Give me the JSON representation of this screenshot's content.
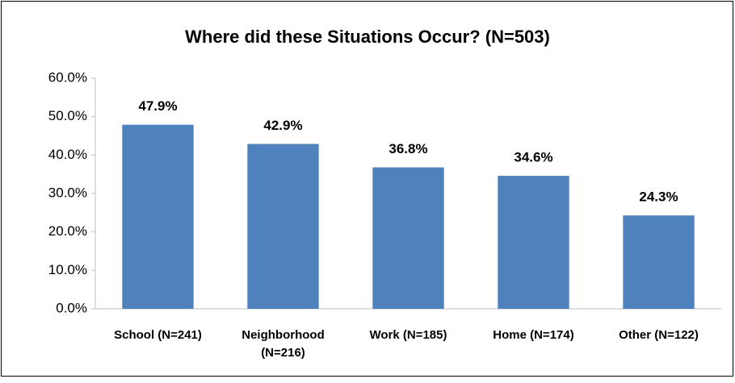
{
  "chart_data": {
    "type": "bar",
    "title": "Where did these Situations Occur? (N=503)",
    "categories": [
      "School (N=241)",
      "Neighborhood (N=216)",
      "Work (N=185)",
      "Home (N=174)",
      "Other (N=122)"
    ],
    "values": [
      47.9,
      42.9,
      36.8,
      34.6,
      24.3
    ],
    "value_labels": [
      "47.9%",
      "42.9%",
      "36.8%",
      "34.6%",
      "24.3%"
    ],
    "color": "#4f81bd",
    "ylim": [
      0,
      60
    ],
    "yticks": [
      {
        "value": 0,
        "label": "0.0%"
      },
      {
        "value": 10,
        "label": "10.0%"
      },
      {
        "value": 20,
        "label": "20.0%"
      },
      {
        "value": 30,
        "label": "30.0%"
      },
      {
        "value": 40,
        "label": "40.0%"
      },
      {
        "value": 50,
        "label": "50.0%"
      },
      {
        "value": 60,
        "label": "60.0%"
      }
    ],
    "grid": false
  }
}
